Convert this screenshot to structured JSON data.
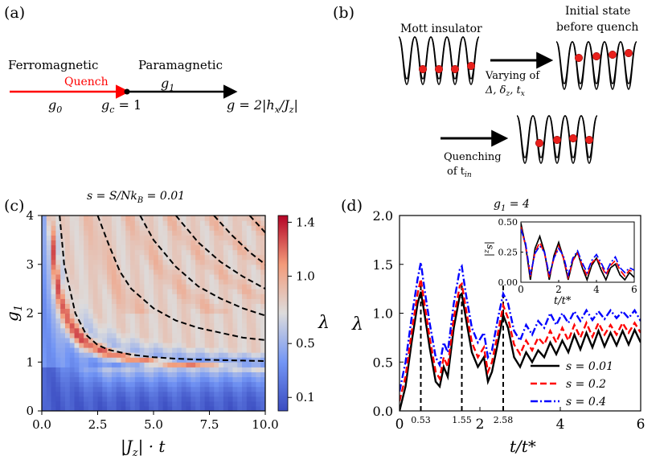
{
  "panel_a": {
    "label": "(a)",
    "ferro": "Ferromagnetic",
    "para": "Paramagnetic",
    "quench": "Quench",
    "g0": "g",
    "g0_sub": "0",
    "gc": "g",
    "gc_sub": "c",
    "gc_val": " = 1",
    "g1": "g",
    "g1_sub": "1",
    "g_def": "g = 2|h",
    "g_def_sub_x": "x",
    "g_def_tail": "/J",
    "g_def_sub_z": "z",
    "g_def_end": "|",
    "colors": {
      "quench": "#ff0000",
      "axis": "#000000"
    }
  },
  "panel_b": {
    "label": "(b)",
    "mott": "Mott insulator",
    "initial_line1": "Initial state",
    "initial_line2": "before quench",
    "varying_line1": "Varying of",
    "varying_line2": "Δ, δ",
    "varying_sub_z": "z",
    "varying_tail": ", t",
    "varying_sub_x": "x",
    "quenching_line1": "Quenching",
    "quenching_line2": "of t",
    "quenching_sub": "in",
    "colors": {
      "atom": "#e8201c"
    }
  },
  "chart_data": [
    {
      "type": "heatmap",
      "panel": "(c)",
      "title": "s = S/Nk",
      "title_sub": "B",
      "title_tail": " = 0.01",
      "xlabel": "|J",
      "xlabel_sub": "z",
      "xlabel_tail": "| · t",
      "ylabel": "g",
      "ylabel_sub": "1",
      "xlim": [
        0,
        10
      ],
      "ylim": [
        0,
        4
      ],
      "xticks": [
        "0.0",
        "2.5",
        "5.0",
        "7.5",
        "10.0"
      ],
      "yticks": [
        "0",
        "1",
        "2",
        "3",
        "4"
      ],
      "colorbar": {
        "label": "λ",
        "range": [
          0.0,
          1.45
        ],
        "ticks": [
          "0.1",
          "0.5",
          "1.0",
          "1.4"
        ],
        "cmap": "coolwarm"
      },
      "dashed_curves": [
        {
          "name": "n0",
          "x": [
            0.8,
            1.0,
            1.5,
            2.0,
            2.5,
            3.0,
            4.0,
            5.0,
            6.0,
            7.0,
            8.0,
            9.0,
            10.0
          ],
          "y": [
            4.0,
            3.0,
            2.0,
            1.55,
            1.35,
            1.25,
            1.15,
            1.1,
            1.07,
            1.05,
            1.04,
            1.03,
            1.02
          ]
        },
        {
          "name": "n1",
          "x": [
            2.5,
            3.0,
            3.5,
            4.0,
            5.0,
            6.0,
            7.0,
            8.0,
            9.0,
            10.0
          ],
          "y": [
            4.0,
            3.4,
            2.85,
            2.5,
            2.1,
            1.85,
            1.7,
            1.6,
            1.5,
            1.45
          ]
        },
        {
          "name": "n2",
          "x": [
            4.4,
            5.0,
            6.0,
            7.0,
            8.0,
            9.0,
            10.0
          ],
          "y": [
            4.0,
            3.5,
            2.95,
            2.55,
            2.3,
            2.1,
            1.95
          ]
        },
        {
          "name": "n3",
          "x": [
            6.0,
            7.0,
            8.0,
            9.0,
            10.0
          ],
          "y": [
            4.0,
            3.45,
            3.05,
            2.75,
            2.5
          ]
        },
        {
          "name": "n4",
          "x": [
            7.7,
            8.5,
            9.3,
            10.0
          ],
          "y": [
            4.0,
            3.6,
            3.25,
            3.0
          ]
        },
        {
          "name": "n5",
          "x": [
            9.3,
            9.7,
            10.0
          ],
          "y": [
            4.0,
            3.8,
            3.65
          ]
        }
      ]
    },
    {
      "type": "line",
      "panel": "(d)",
      "title": "g",
      "title_sub": "1",
      "title_tail": " = 4",
      "xlabel": "t/t*",
      "ylabel": "λ",
      "xlim": [
        0,
        6
      ],
      "ylim": [
        0,
        2
      ],
      "xticks": [
        "0",
        "2",
        "4",
        "6"
      ],
      "yticks": [
        "0.0",
        "0.5",
        "1.0",
        "1.5",
        "2.0"
      ],
      "vlines": [
        {
          "x": 0.53,
          "label": "0.53"
        },
        {
          "x": 1.55,
          "label": "1.55"
        },
        {
          "x": 2.58,
          "label": "2.58"
        }
      ],
      "legend_position": "lower-right",
      "series": [
        {
          "name": "s = 0.01",
          "color": "#000000",
          "style": "solid",
          "x": [
            0,
            0.15,
            0.3,
            0.45,
            0.53,
            0.62,
            0.75,
            0.9,
            1.0,
            1.1,
            1.2,
            1.35,
            1.5,
            1.55,
            1.65,
            1.8,
            1.95,
            2.1,
            2.2,
            2.3,
            2.45,
            2.58,
            2.7,
            2.85,
            3.0,
            3.15,
            3.3,
            3.45,
            3.6,
            3.75,
            3.9,
            4.05,
            4.2,
            4.35,
            4.5,
            4.65,
            4.8,
            4.95,
            5.1,
            5.25,
            5.4,
            5.55,
            5.7,
            5.85,
            6.0
          ],
          "y": [
            0,
            0.25,
            0.7,
            1.1,
            1.22,
            1.0,
            0.65,
            0.3,
            0.25,
            0.45,
            0.35,
            0.85,
            1.18,
            1.2,
            0.95,
            0.6,
            0.45,
            0.55,
            0.3,
            0.4,
            0.7,
            0.98,
            0.85,
            0.55,
            0.45,
            0.6,
            0.5,
            0.62,
            0.55,
            0.7,
            0.58,
            0.72,
            0.6,
            0.78,
            0.63,
            0.8,
            0.65,
            0.82,
            0.66,
            0.8,
            0.67,
            0.82,
            0.68,
            0.83,
            0.7
          ]
        },
        {
          "name": "s = 0.2",
          "color": "#ff0000",
          "style": "dashed",
          "x": [
            0,
            0.15,
            0.3,
            0.45,
            0.53,
            0.62,
            0.75,
            0.9,
            1.0,
            1.1,
            1.2,
            1.35,
            1.5,
            1.55,
            1.65,
            1.8,
            1.95,
            2.1,
            2.2,
            2.3,
            2.45,
            2.58,
            2.7,
            2.85,
            3.0,
            3.15,
            3.3,
            3.45,
            3.6,
            3.75,
            3.9,
            4.05,
            4.2,
            4.35,
            4.5,
            4.65,
            4.8,
            4.95,
            5.1,
            5.25,
            5.4,
            5.55,
            5.7,
            5.85,
            6.0
          ],
          "y": [
            0.1,
            0.35,
            0.8,
            1.2,
            1.35,
            1.1,
            0.75,
            0.4,
            0.33,
            0.55,
            0.45,
            0.95,
            1.28,
            1.3,
            1.05,
            0.7,
            0.55,
            0.65,
            0.4,
            0.5,
            0.8,
            1.08,
            0.95,
            0.68,
            0.58,
            0.72,
            0.62,
            0.75,
            0.68,
            0.82,
            0.7,
            0.85,
            0.72,
            0.88,
            0.75,
            0.9,
            0.76,
            0.9,
            0.78,
            0.88,
            0.78,
            0.9,
            0.8,
            0.9,
            0.8
          ]
        },
        {
          "name": "s = 0.4",
          "color": "#0000ff",
          "style": "dashdot",
          "x": [
            0,
            0.15,
            0.3,
            0.45,
            0.53,
            0.62,
            0.75,
            0.9,
            1.0,
            1.1,
            1.2,
            1.35,
            1.5,
            1.55,
            1.65,
            1.8,
            1.95,
            2.1,
            2.2,
            2.3,
            2.45,
            2.58,
            2.7,
            2.85,
            3.0,
            3.15,
            3.3,
            3.45,
            3.6,
            3.75,
            3.9,
            4.05,
            4.2,
            4.35,
            4.5,
            4.65,
            4.8,
            4.95,
            5.1,
            5.25,
            5.4,
            5.55,
            5.7,
            5.85,
            6.0
          ],
          "y": [
            0.2,
            0.5,
            0.95,
            1.35,
            1.52,
            1.25,
            0.9,
            0.55,
            0.47,
            0.7,
            0.6,
            1.1,
            1.45,
            1.48,
            1.2,
            0.85,
            0.7,
            0.8,
            0.55,
            0.62,
            0.95,
            1.2,
            1.1,
            0.82,
            0.72,
            0.88,
            0.78,
            0.92,
            0.85,
            1.0,
            0.88,
            1.0,
            0.9,
            1.02,
            0.92,
            1.03,
            0.93,
            1.02,
            0.94,
            1.03,
            0.95,
            1.02,
            0.95,
            1.03,
            0.92
          ]
        }
      ],
      "inset": {
        "xlabel": "t/t*",
        "ylabel": "|s",
        "ylabel_sub": "z",
        "ylabel_tail": "|",
        "xlim": [
          0,
          6
        ],
        "ylim": [
          0,
          0.5
        ],
        "xticks": [
          "0",
          "2",
          "4",
          "6"
        ],
        "yticks": [
          "0.00",
          "0.25",
          "0.50"
        ],
        "series": [
          {
            "name": "s = 0.01",
            "color": "#000000",
            "style": "solid",
            "x": [
              0,
              0.25,
              0.5,
              0.75,
              1.0,
              1.25,
              1.5,
              1.75,
              2.0,
              2.25,
              2.5,
              2.75,
              3.0,
              3.25,
              3.5,
              3.75,
              4.0,
              4.25,
              4.5,
              4.75,
              5.0,
              5.25,
              5.5,
              5.75,
              6.0
            ],
            "y": [
              0.49,
              0.3,
              0.02,
              0.28,
              0.38,
              0.25,
              0.02,
              0.22,
              0.33,
              0.2,
              0.02,
              0.18,
              0.25,
              0.12,
              0.02,
              0.14,
              0.2,
              0.1,
              0.02,
              0.12,
              0.15,
              0.06,
              0.02,
              0.08,
              0.04
            ]
          },
          {
            "name": "s = 0.2",
            "color": "#ff0000",
            "style": "dashed",
            "x": [
              0,
              0.25,
              0.5,
              0.75,
              1.0,
              1.25,
              1.5,
              1.75,
              2.0,
              2.25,
              2.5,
              2.75,
              3.0,
              3.25,
              3.5,
              3.75,
              4.0,
              4.25,
              4.5,
              4.75,
              5.0,
              5.25,
              5.5,
              5.75,
              6.0
            ],
            "y": [
              0.46,
              0.3,
              0.05,
              0.25,
              0.33,
              0.24,
              0.04,
              0.2,
              0.3,
              0.2,
              0.04,
              0.18,
              0.24,
              0.14,
              0.05,
              0.16,
              0.2,
              0.14,
              0.06,
              0.14,
              0.18,
              0.1,
              0.05,
              0.1,
              0.08
            ]
          },
          {
            "name": "s = 0.4",
            "color": "#0000ff",
            "style": "dashdot",
            "x": [
              0,
              0.25,
              0.5,
              0.75,
              1.0,
              1.25,
              1.5,
              1.75,
              2.0,
              2.25,
              2.5,
              2.75,
              3.0,
              3.25,
              3.5,
              3.75,
              4.0,
              4.25,
              4.5,
              4.75,
              5.0,
              5.25,
              5.5,
              5.75,
              6.0
            ],
            "y": [
              0.44,
              0.32,
              0.06,
              0.24,
              0.3,
              0.25,
              0.06,
              0.2,
              0.28,
              0.22,
              0.06,
              0.2,
              0.26,
              0.16,
              0.08,
              0.18,
              0.23,
              0.16,
              0.08,
              0.16,
              0.21,
              0.12,
              0.08,
              0.12,
              0.1
            ]
          }
        ]
      }
    }
  ]
}
